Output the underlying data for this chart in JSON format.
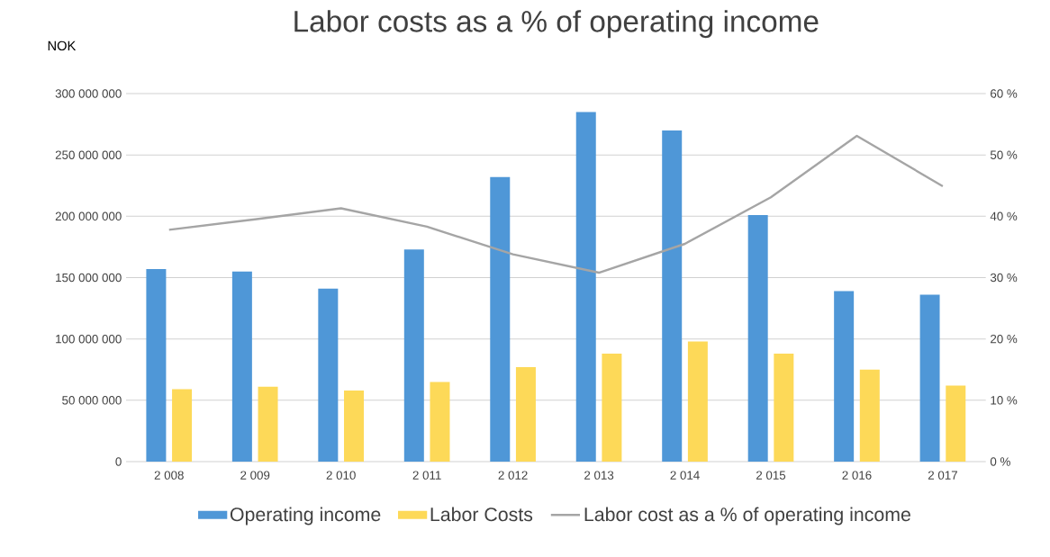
{
  "chart_data": {
    "type": "bar",
    "title": "Labor costs as a % of operating income",
    "ylabel": "NOK",
    "categories": [
      "2 008",
      "2 009",
      "2 010",
      "2 011",
      "2 012",
      "2 013",
      "2 014",
      "2 015",
      "2 016",
      "2 017"
    ],
    "series": [
      {
        "name": "Operating income",
        "color": "#4f97d7",
        "values": [
          157000000,
          155000000,
          141000000,
          173000000,
          232000000,
          285000000,
          270000000,
          201000000,
          139000000,
          136000000
        ]
      },
      {
        "name": "Labor Costs",
        "color": "#fdd958",
        "values": [
          59000000,
          61000000,
          58000000,
          65000000,
          77000000,
          88000000,
          98000000,
          88000000,
          75000000,
          62000000
        ]
      },
      {
        "name": "Labor cost as a % of operating income",
        "color": "#a5a5a5",
        "type": "line",
        "axis": "y2",
        "values": [
          37.8,
          39.5,
          41.3,
          38.3,
          33.8,
          30.8,
          35.5,
          43.1,
          53.1,
          44.9
        ]
      }
    ],
    "ylim": [
      0,
      300000000
    ],
    "yticks": [
      {
        "value": 0,
        "label": "0"
      },
      {
        "value": 50000000,
        "label": "50 000 000"
      },
      {
        "value": 100000000,
        "label": "100 000 000"
      },
      {
        "value": 150000000,
        "label": "150 000 000"
      },
      {
        "value": 200000000,
        "label": "200 000 000"
      },
      {
        "value": 250000000,
        "label": "250 000 000"
      },
      {
        "value": 300000000,
        "label": "300 000 000"
      }
    ],
    "y2lim": [
      0,
      60
    ],
    "y2ticks": [
      {
        "value": 0,
        "label": "0 %"
      },
      {
        "value": 10,
        "label": "10 %"
      },
      {
        "value": 20,
        "label": "20 %"
      },
      {
        "value": 30,
        "label": "30 %"
      },
      {
        "value": 40,
        "label": "40 %"
      },
      {
        "value": 50,
        "label": "50 %"
      },
      {
        "value": 60,
        "label": "60 %"
      }
    ],
    "grid": "y",
    "legend": "bottom",
    "marker": "none",
    "line_style": "solid"
  }
}
